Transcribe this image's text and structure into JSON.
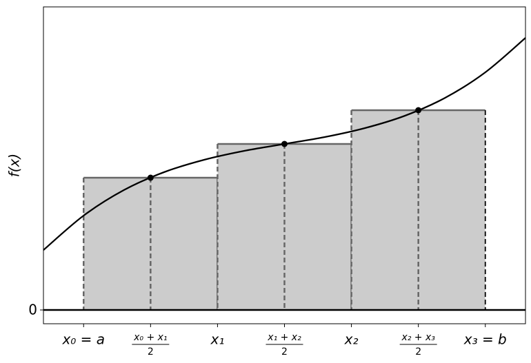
{
  "chart_data": {
    "type": "midpoint-riemann",
    "ylabel": "f(x)",
    "xlim": [
      -0.3,
      3.3
    ],
    "ylim": [
      -0.2,
      4.4
    ],
    "xticks": [
      {
        "value": 0,
        "label": "x₀ = a"
      },
      {
        "value": 0.5,
        "label": "x₀ + x₁",
        "denominator": "2"
      },
      {
        "value": 1,
        "label": "x₁"
      },
      {
        "value": 1.5,
        "label": "x₁ + x₂",
        "denominator": "2"
      },
      {
        "value": 2,
        "label": "x₂"
      },
      {
        "value": 2.5,
        "label": "x₂ + x₃",
        "denominator": "2"
      },
      {
        "value": 3,
        "label": "x₃ = b"
      }
    ],
    "yticks": [
      0
    ],
    "curve": {
      "color": "#000000",
      "x": [
        -0.3,
        0,
        0.3,
        0.6,
        0.9,
        1.2,
        1.5,
        1.8,
        2.1,
        2.4,
        2.7,
        3.0,
        3.3
      ],
      "values": [
        0.87,
        1.37,
        1.74,
        2.0,
        2.18,
        2.31,
        2.41,
        2.51,
        2.64,
        2.82,
        3.08,
        3.45,
        3.95
      ]
    },
    "rectangles": {
      "color": "#cccccc",
      "edge_color": "#666666",
      "left": [
        0,
        1,
        2
      ],
      "right": [
        1,
        2,
        3
      ],
      "midpoints": [
        0.5,
        1.5,
        2.5
      ],
      "values": [
        1.92,
        2.41,
        2.9
      ]
    }
  }
}
